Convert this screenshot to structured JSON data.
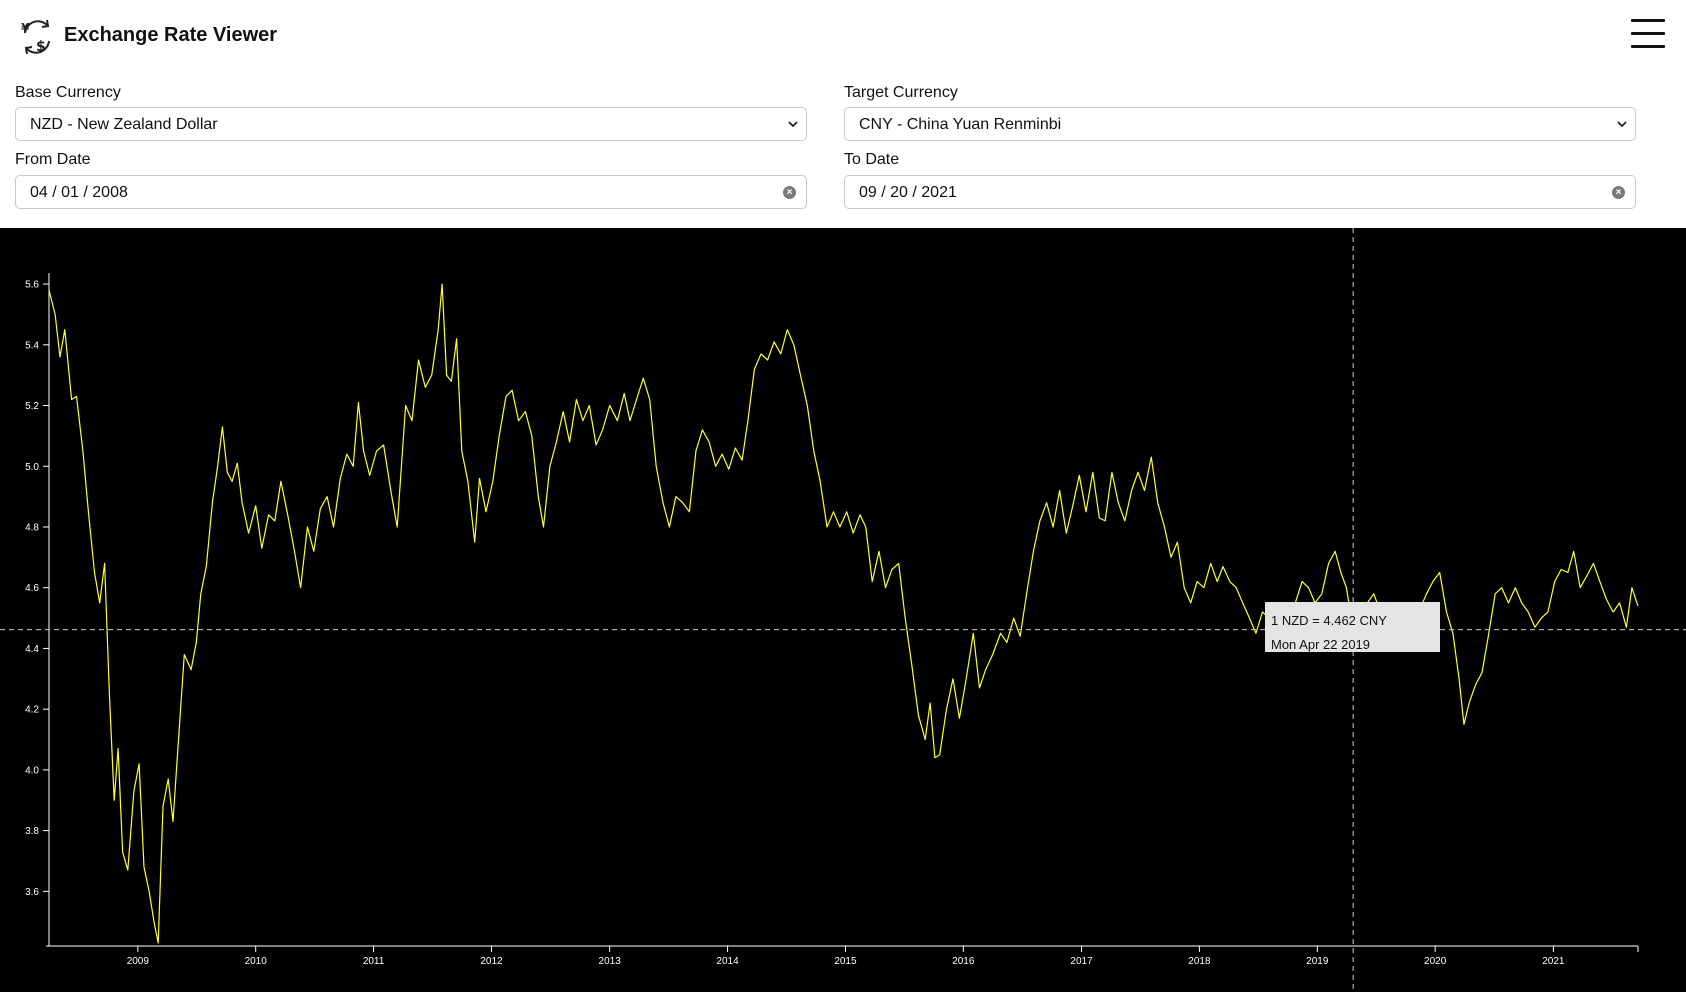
{
  "app": {
    "title": "Exchange Rate Viewer",
    "logo_icon": "currency-exchange-icon",
    "menu_icon": "hamburger-menu-icon"
  },
  "form": {
    "base_currency_label": "Base Currency",
    "base_currency_value": "NZD - New Zealand Dollar",
    "target_currency_label": "Target Currency",
    "target_currency_value": "CNY - China Yuan Renminbi",
    "from_date_label": "From Date",
    "from_date_value": "04 / 01 / 2008",
    "to_date_label": "To Date",
    "to_date_value": "09 / 20 / 2021"
  },
  "tooltip": {
    "rate_text": "1 NZD = 4.462 CNY",
    "date_text": "Mon Apr 22 2019"
  },
  "colors": {
    "chart_background": "#000000",
    "line": "#ffff33",
    "axis": "#ffffff",
    "crosshair": "#cccccc"
  },
  "chart_data": {
    "type": "line",
    "title": "",
    "xlabel": "",
    "ylabel": "",
    "grid": false,
    "x_ticks": [
      "2009",
      "2010",
      "2011",
      "2012",
      "2013",
      "2014",
      "2015",
      "2016",
      "2017",
      "2018",
      "2019",
      "2020",
      "2021"
    ],
    "y_ticks": [
      "3.6",
      "3.8",
      "4.0",
      "4.2",
      "4.4",
      "4.6",
      "4.8",
      "5.0",
      "5.2",
      "5.4",
      "5.6"
    ],
    "xlim": [
      "2008-04-01",
      "2021-09-20"
    ],
    "ylim": [
      3.42,
      5.62
    ],
    "crosshair": {
      "x": "2019-04-22",
      "y": 4.462
    },
    "series": [
      {
        "values": [
          [
            "2008-04-01",
            5.58
          ],
          [
            "2008-04-20",
            5.5
          ],
          [
            "2008-05-05",
            5.36
          ],
          [
            "2008-05-20",
            5.45
          ],
          [
            "2008-06-10",
            5.22
          ],
          [
            "2008-06-25",
            5.23
          ],
          [
            "2008-07-15",
            5.05
          ],
          [
            "2008-08-01",
            4.85
          ],
          [
            "2008-08-20",
            4.65
          ],
          [
            "2008-09-05",
            4.55
          ],
          [
            "2008-09-20",
            4.68
          ],
          [
            "2008-10-05",
            4.25
          ],
          [
            "2008-10-20",
            3.9
          ],
          [
            "2008-11-01",
            4.07
          ],
          [
            "2008-11-15",
            3.73
          ],
          [
            "2008-12-01",
            3.67
          ],
          [
            "2008-12-20",
            3.93
          ],
          [
            "2009-01-05",
            4.02
          ],
          [
            "2009-01-20",
            3.68
          ],
          [
            "2009-02-05",
            3.6
          ],
          [
            "2009-02-20",
            3.5
          ],
          [
            "2009-03-05",
            3.43
          ],
          [
            "2009-03-20",
            3.88
          ],
          [
            "2009-04-05",
            3.97
          ],
          [
            "2009-04-20",
            3.83
          ],
          [
            "2009-05-05",
            4.07
          ],
          [
            "2009-05-25",
            4.38
          ],
          [
            "2009-06-15",
            4.33
          ],
          [
            "2009-07-01",
            4.42
          ],
          [
            "2009-07-15",
            4.58
          ],
          [
            "2009-08-01",
            4.67
          ],
          [
            "2009-08-20",
            4.88
          ],
          [
            "2009-09-05",
            5.0
          ],
          [
            "2009-09-20",
            5.13
          ],
          [
            "2009-10-05",
            4.98
          ],
          [
            "2009-10-20",
            4.95
          ],
          [
            "2009-11-05",
            5.01
          ],
          [
            "2009-11-20",
            4.88
          ],
          [
            "2009-12-10",
            4.78
          ],
          [
            "2010-01-01",
            4.87
          ],
          [
            "2010-01-20",
            4.73
          ],
          [
            "2010-02-10",
            4.84
          ],
          [
            "2010-03-01",
            4.82
          ],
          [
            "2010-03-20",
            4.95
          ],
          [
            "2010-04-10",
            4.84
          ],
          [
            "2010-05-01",
            4.72
          ],
          [
            "2010-05-20",
            4.6
          ],
          [
            "2010-06-10",
            4.8
          ],
          [
            "2010-06-30",
            4.72
          ],
          [
            "2010-07-20",
            4.86
          ],
          [
            "2010-08-10",
            4.9
          ],
          [
            "2010-08-30",
            4.8
          ],
          [
            "2010-09-20",
            4.96
          ],
          [
            "2010-10-10",
            5.04
          ],
          [
            "2010-10-30",
            5.0
          ],
          [
            "2010-11-15",
            5.21
          ],
          [
            "2010-12-01",
            5.05
          ],
          [
            "2010-12-20",
            4.97
          ],
          [
            "2011-01-10",
            5.05
          ],
          [
            "2011-02-01",
            5.07
          ],
          [
            "2011-02-25",
            4.91
          ],
          [
            "2011-03-15",
            4.8
          ],
          [
            "2011-04-10",
            5.2
          ],
          [
            "2011-04-30",
            5.15
          ],
          [
            "2011-05-20",
            5.35
          ],
          [
            "2011-06-10",
            5.26
          ],
          [
            "2011-06-30",
            5.3
          ],
          [
            "2011-07-20",
            5.45
          ],
          [
            "2011-08-01",
            5.6
          ],
          [
            "2011-08-15",
            5.3
          ],
          [
            "2011-08-30",
            5.28
          ],
          [
            "2011-09-15",
            5.42
          ],
          [
            "2011-10-01",
            5.05
          ],
          [
            "2011-10-20",
            4.95
          ],
          [
            "2011-11-10",
            4.75
          ],
          [
            "2011-11-25",
            4.96
          ],
          [
            "2011-12-15",
            4.85
          ],
          [
            "2012-01-05",
            4.95
          ],
          [
            "2012-01-25",
            5.1
          ],
          [
            "2012-02-15",
            5.23
          ],
          [
            "2012-03-05",
            5.25
          ],
          [
            "2012-03-25",
            5.15
          ],
          [
            "2012-04-15",
            5.18
          ],
          [
            "2012-05-05",
            5.1
          ],
          [
            "2012-05-25",
            4.9
          ],
          [
            "2012-06-10",
            4.8
          ],
          [
            "2012-06-30",
            5.0
          ],
          [
            "2012-07-20",
            5.08
          ],
          [
            "2012-08-10",
            5.18
          ],
          [
            "2012-08-30",
            5.08
          ],
          [
            "2012-09-20",
            5.22
          ],
          [
            "2012-10-10",
            5.15
          ],
          [
            "2012-10-30",
            5.2
          ],
          [
            "2012-11-20",
            5.07
          ],
          [
            "2012-12-10",
            5.12
          ],
          [
            "2013-01-01",
            5.2
          ],
          [
            "2013-01-25",
            5.15
          ],
          [
            "2013-02-15",
            5.24
          ],
          [
            "2013-03-05",
            5.15
          ],
          [
            "2013-03-25",
            5.22
          ],
          [
            "2013-04-15",
            5.29
          ],
          [
            "2013-05-05",
            5.22
          ],
          [
            "2013-05-25",
            5.0
          ],
          [
            "2013-06-15",
            4.88
          ],
          [
            "2013-07-05",
            4.8
          ],
          [
            "2013-07-25",
            4.9
          ],
          [
            "2013-08-15",
            4.88
          ],
          [
            "2013-09-05",
            4.85
          ],
          [
            "2013-09-25",
            5.05
          ],
          [
            "2013-10-15",
            5.12
          ],
          [
            "2013-11-05",
            5.08
          ],
          [
            "2013-11-25",
            5.0
          ],
          [
            "2013-12-15",
            5.04
          ],
          [
            "2014-01-05",
            4.99
          ],
          [
            "2014-01-25",
            5.06
          ],
          [
            "2014-02-15",
            5.02
          ],
          [
            "2014-03-05",
            5.15
          ],
          [
            "2014-03-25",
            5.32
          ],
          [
            "2014-04-15",
            5.37
          ],
          [
            "2014-05-05",
            5.35
          ],
          [
            "2014-05-25",
            5.41
          ],
          [
            "2014-06-15",
            5.37
          ],
          [
            "2014-07-05",
            5.45
          ],
          [
            "2014-07-25",
            5.4
          ],
          [
            "2014-08-15",
            5.3
          ],
          [
            "2014-09-05",
            5.2
          ],
          [
            "2014-09-25",
            5.05
          ],
          [
            "2014-10-15",
            4.95
          ],
          [
            "2014-11-05",
            4.8
          ],
          [
            "2014-11-25",
            4.85
          ],
          [
            "2014-12-15",
            4.8
          ],
          [
            "2015-01-05",
            4.85
          ],
          [
            "2015-01-25",
            4.78
          ],
          [
            "2015-02-15",
            4.84
          ],
          [
            "2015-03-05",
            4.8
          ],
          [
            "2015-03-25",
            4.62
          ],
          [
            "2015-04-15",
            4.72
          ],
          [
            "2015-05-05",
            4.6
          ],
          [
            "2015-05-25",
            4.66
          ],
          [
            "2015-06-15",
            4.68
          ],
          [
            "2015-07-05",
            4.5
          ],
          [
            "2015-07-25",
            4.35
          ],
          [
            "2015-08-15",
            4.18
          ],
          [
            "2015-09-05",
            4.1
          ],
          [
            "2015-09-20",
            4.22
          ],
          [
            "2015-10-05",
            4.04
          ],
          [
            "2015-10-20",
            4.05
          ],
          [
            "2015-11-10",
            4.2
          ],
          [
            "2015-11-30",
            4.3
          ],
          [
            "2015-12-20",
            4.17
          ],
          [
            "2016-01-10",
            4.3
          ],
          [
            "2016-02-01",
            4.45
          ],
          [
            "2016-02-20",
            4.27
          ],
          [
            "2016-03-10",
            4.33
          ],
          [
            "2016-04-01",
            4.38
          ],
          [
            "2016-04-25",
            4.45
          ],
          [
            "2016-05-15",
            4.42
          ],
          [
            "2016-06-05",
            4.5
          ],
          [
            "2016-06-25",
            4.44
          ],
          [
            "2016-07-15",
            4.58
          ],
          [
            "2016-08-05",
            4.72
          ],
          [
            "2016-08-25",
            4.82
          ],
          [
            "2016-09-15",
            4.88
          ],
          [
            "2016-10-05",
            4.8
          ],
          [
            "2016-10-25",
            4.92
          ],
          [
            "2016-11-15",
            4.78
          ],
          [
            "2016-12-05",
            4.87
          ],
          [
            "2016-12-25",
            4.97
          ],
          [
            "2017-01-15",
            4.85
          ],
          [
            "2017-02-05",
            4.98
          ],
          [
            "2017-02-25",
            4.83
          ],
          [
            "2017-03-15",
            4.82
          ],
          [
            "2017-04-05",
            4.98
          ],
          [
            "2017-04-25",
            4.88
          ],
          [
            "2017-05-15",
            4.82
          ],
          [
            "2017-06-05",
            4.92
          ],
          [
            "2017-06-25",
            4.98
          ],
          [
            "2017-07-15",
            4.92
          ],
          [
            "2017-08-05",
            5.03
          ],
          [
            "2017-08-25",
            4.88
          ],
          [
            "2017-09-15",
            4.8
          ],
          [
            "2017-10-05",
            4.7
          ],
          [
            "2017-10-25",
            4.75
          ],
          [
            "2017-11-15",
            4.6
          ],
          [
            "2017-12-05",
            4.55
          ],
          [
            "2017-12-25",
            4.62
          ],
          [
            "2018-01-15",
            4.6
          ],
          [
            "2018-02-05",
            4.68
          ],
          [
            "2018-02-25",
            4.62
          ],
          [
            "2018-03-15",
            4.67
          ],
          [
            "2018-04-05",
            4.62
          ],
          [
            "2018-04-25",
            4.6
          ],
          [
            "2018-05-15",
            4.55
          ],
          [
            "2018-06-05",
            4.5
          ],
          [
            "2018-06-25",
            4.45
          ],
          [
            "2018-07-15",
            4.52
          ],
          [
            "2018-08-05",
            4.5
          ],
          [
            "2018-08-25",
            4.4
          ],
          [
            "2018-09-15",
            4.48
          ],
          [
            "2018-10-05",
            4.52
          ],
          [
            "2018-10-25",
            4.55
          ],
          [
            "2018-11-15",
            4.62
          ],
          [
            "2018-12-05",
            4.6
          ],
          [
            "2018-12-25",
            4.55
          ],
          [
            "2019-01-15",
            4.58
          ],
          [
            "2019-02-05",
            4.68
          ],
          [
            "2019-02-25",
            4.72
          ],
          [
            "2019-03-15",
            4.65
          ],
          [
            "2019-04-01",
            4.6
          ],
          [
            "2019-04-22",
            4.462
          ],
          [
            "2019-05-15",
            4.5
          ],
          [
            "2019-06-05",
            4.55
          ],
          [
            "2019-06-25",
            4.58
          ],
          [
            "2019-07-15",
            4.52
          ],
          [
            "2019-08-05",
            4.48
          ],
          [
            "2019-08-25",
            4.47
          ],
          [
            "2019-09-15",
            4.5
          ],
          [
            "2019-10-05",
            4.52
          ],
          [
            "2019-10-25",
            4.55
          ],
          [
            "2019-11-15",
            4.53
          ],
          [
            "2019-12-05",
            4.58
          ],
          [
            "2019-12-25",
            4.62
          ],
          [
            "2020-01-15",
            4.65
          ],
          [
            "2020-02-05",
            4.52
          ],
          [
            "2020-02-25",
            4.45
          ],
          [
            "2020-03-15",
            4.3
          ],
          [
            "2020-03-30",
            4.15
          ],
          [
            "2020-04-15",
            4.22
          ],
          [
            "2020-05-05",
            4.28
          ],
          [
            "2020-05-25",
            4.32
          ],
          [
            "2020-06-15",
            4.45
          ],
          [
            "2020-07-05",
            4.58
          ],
          [
            "2020-07-25",
            4.6
          ],
          [
            "2020-08-15",
            4.55
          ],
          [
            "2020-09-05",
            4.6
          ],
          [
            "2020-09-25",
            4.55
          ],
          [
            "2020-10-15",
            4.52
          ],
          [
            "2020-11-05",
            4.47
          ],
          [
            "2020-11-25",
            4.5
          ],
          [
            "2020-12-15",
            4.52
          ],
          [
            "2021-01-05",
            4.62
          ],
          [
            "2021-01-25",
            4.66
          ],
          [
            "2021-02-15",
            4.65
          ],
          [
            "2021-03-05",
            4.72
          ],
          [
            "2021-03-25",
            4.6
          ],
          [
            "2021-04-15",
            4.64
          ],
          [
            "2021-05-05",
            4.68
          ],
          [
            "2021-05-25",
            4.62
          ],
          [
            "2021-06-15",
            4.56
          ],
          [
            "2021-07-05",
            4.52
          ],
          [
            "2021-07-25",
            4.55
          ],
          [
            "2021-08-15",
            4.47
          ],
          [
            "2021-09-01",
            4.6
          ],
          [
            "2021-09-20",
            4.54
          ]
        ]
      }
    ]
  }
}
